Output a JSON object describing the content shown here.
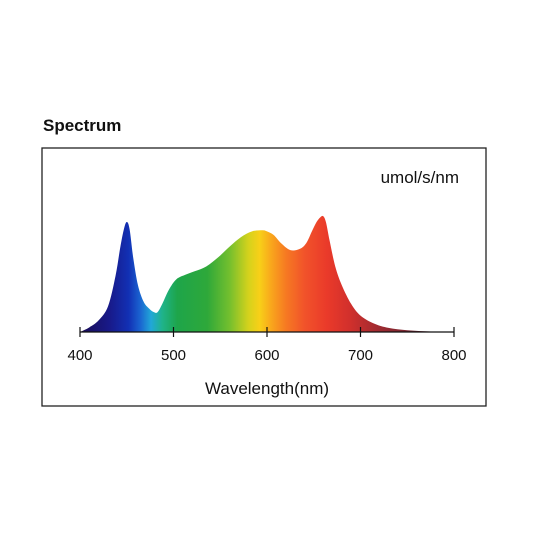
{
  "heading": "Spectrum",
  "chart_data": {
    "type": "area",
    "title": "",
    "unit_label": "umol/s/nm",
    "xlabel": "Wavelength(nm)",
    "ylabel": "",
    "xlim": [
      400,
      800
    ],
    "x_ticks": [
      400,
      500,
      600,
      700,
      800
    ],
    "x_tick_labels": [
      "400",
      "500",
      "600",
      "700",
      "800"
    ],
    "ylim": [
      0,
      1
    ],
    "y_ticks_shown": false,
    "grid": false,
    "legend": "none",
    "fill": "visible-spectrum gradient (violet-blue to deep red)",
    "series": [
      {
        "x": [
          400,
          410,
          420,
          430,
          438,
          443,
          447,
          450,
          453,
          457,
          462,
          468,
          474,
          479,
          483,
          488,
          495,
          503,
          513,
          523,
          535,
          548,
          560,
          572,
          584,
          595,
          600,
          607,
          615,
          625,
          635,
          642,
          648,
          653,
          657,
          660,
          663,
          667,
          673,
          680,
          690,
          700,
          715,
          730,
          750,
          775,
          800
        ],
        "y": [
          0.0,
          0.04,
          0.1,
          0.22,
          0.48,
          0.72,
          0.88,
          0.94,
          0.88,
          0.63,
          0.4,
          0.26,
          0.2,
          0.17,
          0.17,
          0.24,
          0.36,
          0.45,
          0.49,
          0.52,
          0.56,
          0.64,
          0.73,
          0.81,
          0.86,
          0.87,
          0.86,
          0.83,
          0.76,
          0.7,
          0.71,
          0.76,
          0.86,
          0.94,
          0.98,
          0.99,
          0.94,
          0.78,
          0.56,
          0.4,
          0.24,
          0.14,
          0.07,
          0.035,
          0.015,
          0.004,
          0.0
        ]
      }
    ]
  }
}
